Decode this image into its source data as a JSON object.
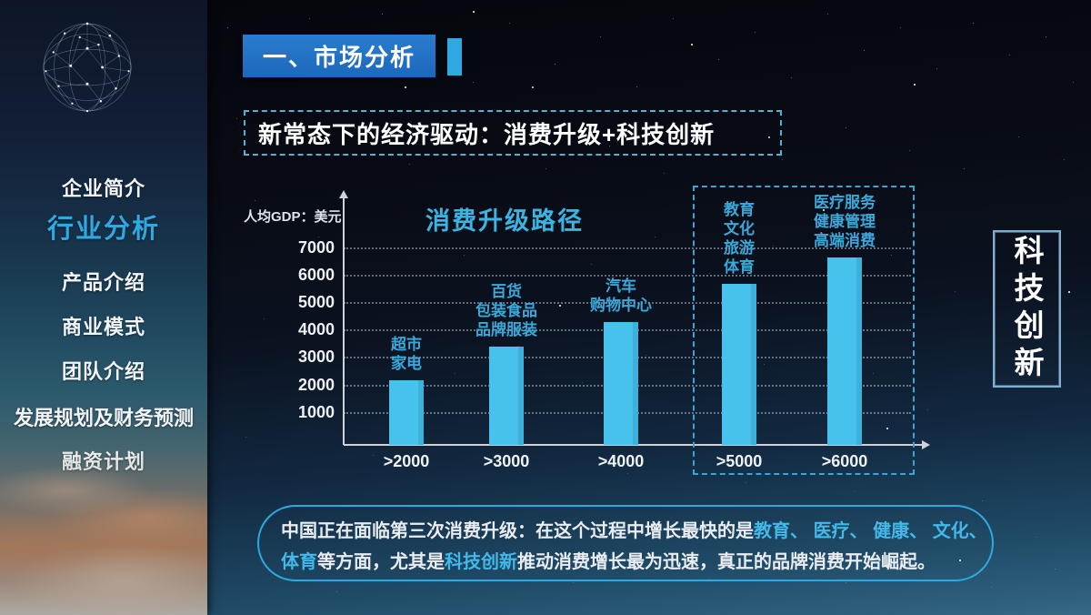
{
  "header": {
    "section_label": "一、市场分析",
    "subtitle": "新常态下的经济驱动：消费升级+科技创新"
  },
  "sidebar": {
    "items": [
      {
        "label": "企业简介",
        "active": false
      },
      {
        "label": "行业分析",
        "active": true
      },
      {
        "label": "产品介绍",
        "active": false
      },
      {
        "label": "商业模式",
        "active": false
      },
      {
        "label": "团队介绍",
        "active": false
      },
      {
        "label": "发展规划及财务预测",
        "active": false
      },
      {
        "label": "融资计划",
        "active": false
      }
    ]
  },
  "side_badge": {
    "text": "科技创新"
  },
  "chart_data": {
    "type": "bar",
    "title": "消费升级路径",
    "ylabel": "人均GDP：美元",
    "xlabel": "",
    "categories": [
      ">2000",
      ">3000",
      ">4000",
      ">5000",
      ">6000"
    ],
    "values": [
      2200,
      3400,
      4300,
      5700,
      6650
    ],
    "bar_labels": [
      "超市\n家电",
      "百货\n包装食品\n品牌服装",
      "汽车\n购物中心",
      "教育\n文化\n旅游\n体育",
      "医疗服务\n健康管理\n高端消费"
    ],
    "yticks": [
      1000,
      2000,
      3000,
      4000,
      5000,
      6000,
      7000
    ],
    "ylim": [
      0,
      7400
    ],
    "grid": "dotted-horizontal",
    "legend": "none",
    "highlight_box_categories": [
      ">5000",
      ">6000"
    ],
    "bar_color": "#47c2ec"
  },
  "note": {
    "lines": [
      {
        "segments": [
          {
            "t": "中国正在面临第三次消费升级：在这个过程中增长最快的是",
            "hl": false
          },
          {
            "t": "教育、 ",
            "hl": true
          },
          {
            "t": "医疗、 ",
            "hl": true
          },
          {
            "t": "健康、 ",
            "hl": true
          },
          {
            "t": "文化、",
            "hl": true
          }
        ]
      },
      {
        "segments": [
          {
            "t": "体育",
            "hl": true
          },
          {
            "t": "等方面，尤其是",
            "hl": false
          },
          {
            "t": "科技创新",
            "hl": true
          },
          {
            "t": "推动消费增长最为迅速，真正的品牌消费开始崛起。",
            "hl": false
          }
        ]
      }
    ]
  },
  "colors": {
    "accent_blue": "#1c68bd",
    "accent_cyan": "#2fa9e2",
    "bar": "#47c2ec",
    "highlight_text": "#41b9ea",
    "dashed_border": "#3fa3d4"
  }
}
